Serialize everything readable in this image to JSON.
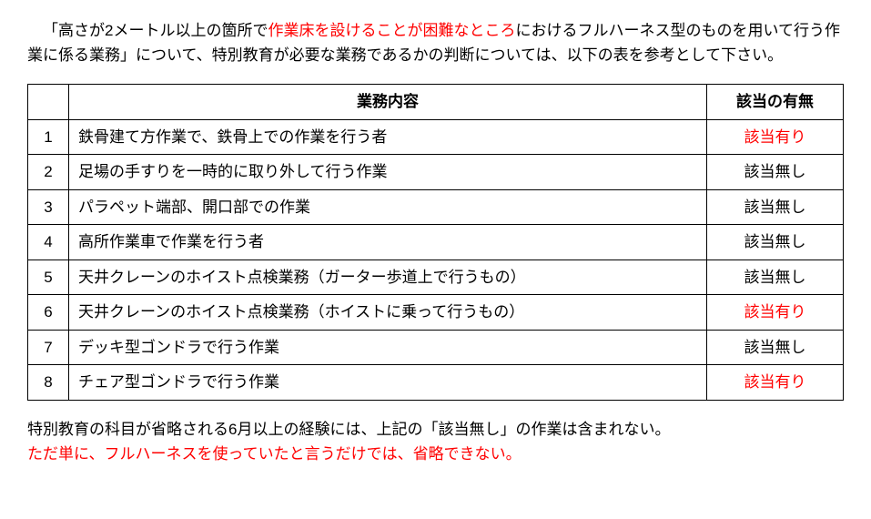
{
  "intro": {
    "pre": "「高さが2メートル以上の箇所で",
    "red": "作業床を設けることが困難なところ",
    "post": "におけるフルハーネス型のものを用いて行う作業に係る業務」について、特別教育が必要な業務であるかの判断については、以下の表を参考として下さい。"
  },
  "table": {
    "headers": {
      "content": "業務内容",
      "status": "該当の有無"
    },
    "rows": [
      {
        "num": "1",
        "content": "鉄骨建て方作業で、鉄骨上での作業を行う者",
        "status": "該当有り",
        "statusRed": true
      },
      {
        "num": "2",
        "content": "足場の手すりを一時的に取り外して行う作業",
        "status": "該当無し",
        "statusRed": false
      },
      {
        "num": "3",
        "content": "パラペット端部、開口部での作業",
        "status": "該当無し",
        "statusRed": false
      },
      {
        "num": "4",
        "content": "高所作業車で作業を行う者",
        "status": "該当無し",
        "statusRed": false
      },
      {
        "num": "5",
        "content": "天井クレーンのホイスト点検業務（ガーター歩道上で行うもの）",
        "status": "該当無し",
        "statusRed": false
      },
      {
        "num": "6",
        "content": "天井クレーンのホイスト点検業務（ホイストに乗って行うもの）",
        "status": "該当有り",
        "statusRed": true
      },
      {
        "num": "7",
        "content": "デッキ型ゴンドラで行う作業",
        "status": "該当無し",
        "statusRed": false
      },
      {
        "num": "8",
        "content": "チェア型ゴンドラで行う作業",
        "status": "該当有り",
        "statusRed": true
      }
    ]
  },
  "footnote": {
    "line1": "特別教育の科目が省略される6月以上の経験には、上記の「該当無し」の作業は含まれない。",
    "line2": "ただ単に、フルハーネスを使っていたと言うだけでは、省略できない。"
  },
  "colors": {
    "red": "#ff0000",
    "black": "#000000"
  }
}
